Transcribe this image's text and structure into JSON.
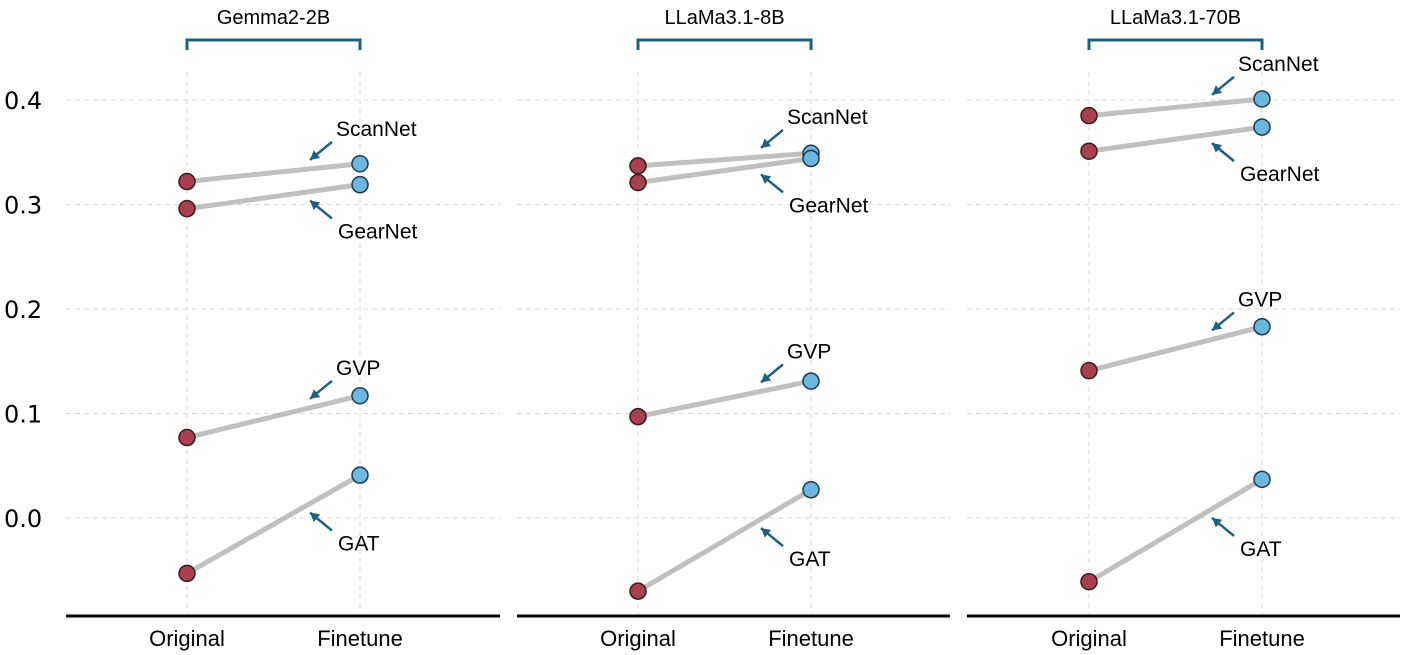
{
  "chart_data": {
    "type": "scatter",
    "subtype": "slope",
    "categories": [
      "Original",
      "Finetune"
    ],
    "ylim": [
      -0.09,
      0.42
    ],
    "yticks": [
      0.0,
      0.1,
      0.2,
      0.3,
      0.4
    ],
    "ytick_labels": [
      "0.0",
      "0.1",
      "0.2",
      "0.3",
      "0.4"
    ],
    "colors": {
      "original": "#a8404f",
      "finetune": "#6ab8e0",
      "connector": "#c0c0c0",
      "accent": "#1f5f80"
    },
    "grid": true,
    "panels": [
      {
        "title": "Gemma2-2B",
        "series": [
          {
            "name": "ScanNet",
            "values": [
              0.322,
              0.339
            ]
          },
          {
            "name": "GearNet",
            "values": [
              0.296,
              0.319
            ]
          },
          {
            "name": "GVP",
            "values": [
              0.077,
              0.117
            ]
          },
          {
            "name": "GAT",
            "values": [
              -0.053,
              0.041
            ]
          }
        ]
      },
      {
        "title": "LLaMa3.1-8B",
        "series": [
          {
            "name": "ScanNet",
            "values": [
              0.337,
              0.349
            ]
          },
          {
            "name": "GearNet",
            "values": [
              0.321,
              0.344
            ]
          },
          {
            "name": "GVP",
            "values": [
              0.097,
              0.131
            ]
          },
          {
            "name": "GAT",
            "values": [
              -0.07,
              0.027
            ]
          }
        ]
      },
      {
        "title": "LLaMa3.1-70B",
        "series": [
          {
            "name": "ScanNet",
            "values": [
              0.385,
              0.401
            ]
          },
          {
            "name": "GearNet",
            "values": [
              0.351,
              0.374
            ]
          },
          {
            "name": "GVP",
            "values": [
              0.141,
              0.183
            ]
          },
          {
            "name": "GAT",
            "values": [
              -0.061,
              0.037
            ]
          }
        ]
      }
    ]
  }
}
